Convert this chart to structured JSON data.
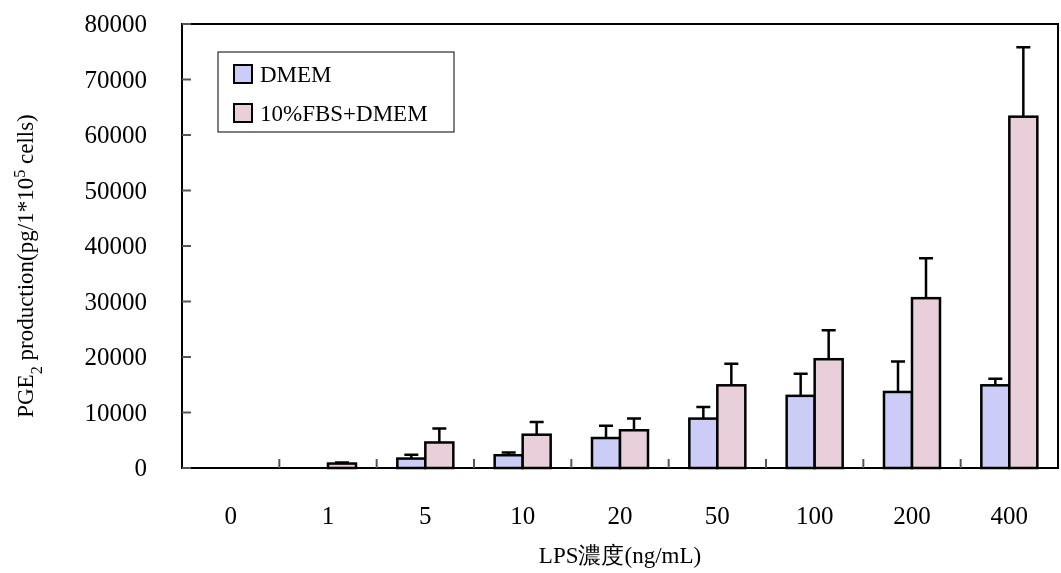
{
  "chart_data": {
    "type": "bar",
    "xlabel": "LPS濃度(ng/mL)",
    "ylabel": "PGE$_{2}$ production(pg/1*10$^{5}$ cells)",
    "categories": [
      "0",
      "1",
      "5",
      "10",
      "20",
      "50",
      "100",
      "200",
      "400"
    ],
    "series": [
      {
        "name": "DMEM",
        "color": "#cbcdf7",
        "values": [
          null,
          null,
          1700,
          2300,
          5400,
          8900,
          13000,
          13700,
          14900
        ],
        "errors": [
          null,
          null,
          [
            1700,
            2400
          ],
          [
            2300,
            2800
          ],
          [
            5400,
            7600
          ],
          [
            8900,
            11000
          ],
          [
            13000,
            17000
          ],
          [
            13700,
            19200
          ],
          [
            14900,
            16100
          ]
        ]
      },
      {
        "name": "10%FBS+DMEM",
        "color": "#e8cfd9",
        "values": [
          null,
          800,
          4600,
          6000,
          6800,
          14900,
          19600,
          30600,
          63300
        ],
        "errors": [
          null,
          [
            800,
            1000
          ],
          [
            4600,
            7100
          ],
          [
            6000,
            8300
          ],
          [
            6800,
            8900
          ],
          [
            14900,
            18800
          ],
          [
            19600,
            24800
          ],
          [
            30600,
            37800
          ],
          [
            63300,
            75800
          ]
        ]
      }
    ],
    "ylim": [
      0,
      80000
    ],
    "yticks": [
      0,
      10000,
      20000,
      30000,
      40000,
      50000,
      60000,
      70000,
      80000
    ],
    "legend": "top left",
    "grid": false
  }
}
